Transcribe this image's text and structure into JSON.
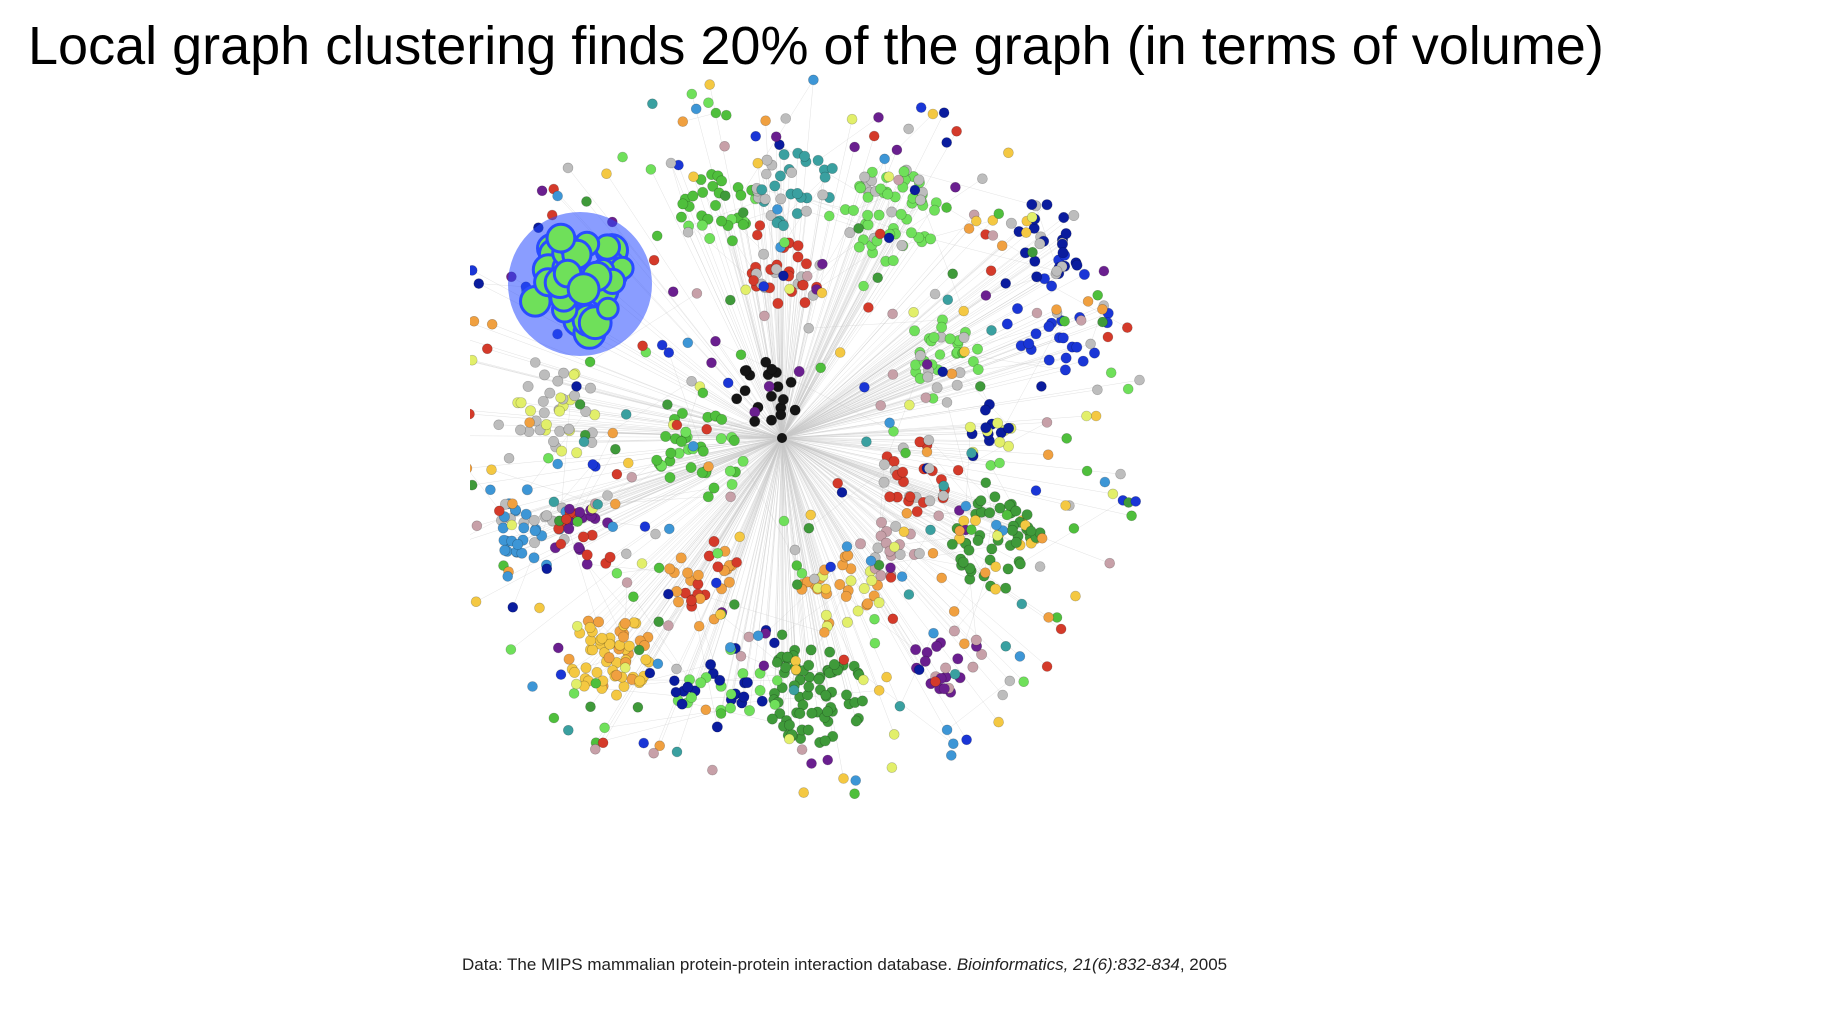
{
  "slide": {
    "title": "Local graph clustering finds 20% of the graph (in terms of volume)"
  },
  "figure": {
    "description_visible": "",
    "palette": {
      "light_green": "#6fe05a",
      "dark_green": "#3f9a3a",
      "mid_green": "#4fbf3c",
      "blue": "#1a36d6",
      "navy": "#0a1c9e",
      "red": "#d43a2a",
      "orange": "#f0a040",
      "yellow": "#f4c842",
      "pale_yellow": "#e2ef6a",
      "purple": "#6a1f8f",
      "teal": "#3aa0a0",
      "sky_blue": "#3d96d6",
      "gray": "#bdbdbd",
      "pink_gray": "#c7a0a8",
      "black": "#151515",
      "highlight_blue": "#2a4cff",
      "edge": "#c8c8c8"
    },
    "highlighted_cluster_color": "#2a4cff"
  },
  "caption": {
    "prefix": "Data: The MIPS mammalian protein-protein interaction database. ",
    "journal": "Bioinformatics, 21(6):832-834",
    "suffix": ", 2005"
  }
}
